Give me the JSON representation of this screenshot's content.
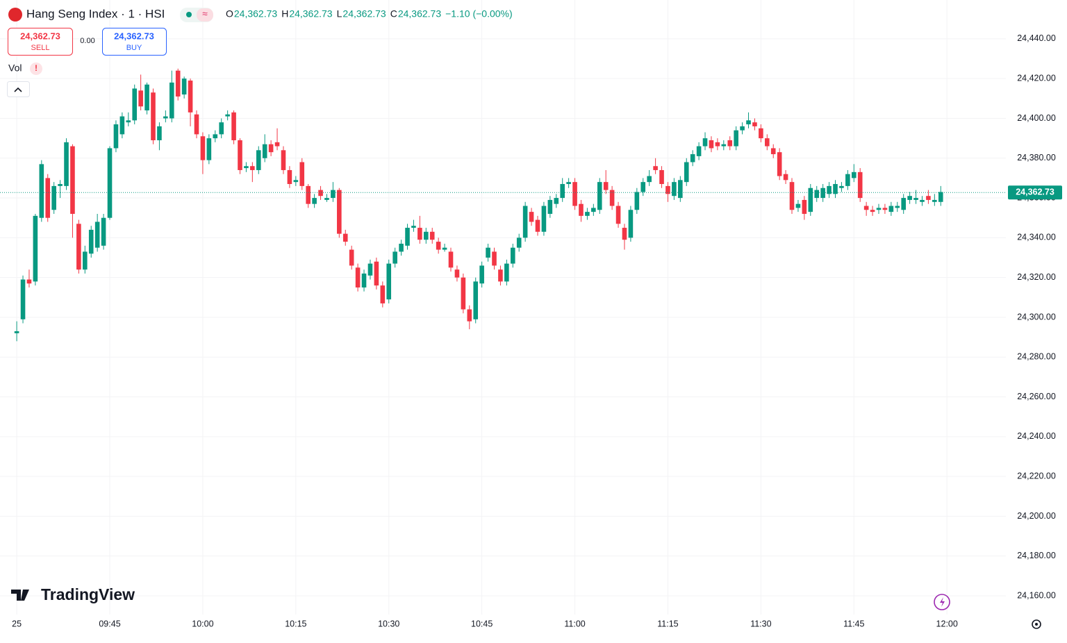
{
  "header": {
    "title": "Hang Seng Index · 1 · HSI",
    "legend": [
      {
        "key": "O",
        "value": "24,362.73"
      },
      {
        "key": "H",
        "value": "24,362.73"
      },
      {
        "key": "L",
        "value": "24,362.73"
      },
      {
        "key": "C",
        "value": "24,362.73"
      }
    ],
    "change": "−1.10 (−0.00%)",
    "toggle_icon": "≈"
  },
  "trade": {
    "sell_price": "24,362.73",
    "sell": "SELL",
    "spread": "0.00",
    "buy_price": "24,362.73",
    "buy": "BUY"
  },
  "indicator": {
    "name": "Vol",
    "warning": "!"
  },
  "logo": "TradingView",
  "chart_data": {
    "type": "candlestick",
    "up_color": "#089981",
    "down_color": "#f23645",
    "grid": true,
    "last_price": {
      "value": 24362.73,
      "label": "24,362.73"
    },
    "xlim": [
      -2.7,
      159.5
    ],
    "ylim": [
      24150.6,
      24459.5
    ],
    "xticks": [
      {
        "value": 0,
        "label": "25"
      },
      {
        "value": 15,
        "label": "09:45"
      },
      {
        "value": 30,
        "label": "10:00"
      },
      {
        "value": 45,
        "label": "10:15"
      },
      {
        "value": 60,
        "label": "10:30"
      },
      {
        "value": 75,
        "label": "10:45"
      },
      {
        "value": 90,
        "label": "11:00"
      },
      {
        "value": 105,
        "label": "11:15"
      },
      {
        "value": 120,
        "label": "11:30"
      },
      {
        "value": 135,
        "label": "11:45"
      },
      {
        "value": 150,
        "label": "12:00"
      }
    ],
    "yticks": [
      {
        "value": 24160,
        "label": "24,160.00"
      },
      {
        "value": 24180,
        "label": "24,180.00"
      },
      {
        "value": 24200,
        "label": "24,200.00"
      },
      {
        "value": 24220,
        "label": "24,220.00"
      },
      {
        "value": 24240,
        "label": "24,240.00"
      },
      {
        "value": 24260,
        "label": "24,260.00"
      },
      {
        "value": 24280,
        "label": "24,280.00"
      },
      {
        "value": 24300,
        "label": "24,300.00"
      },
      {
        "value": 24320,
        "label": "24,320.00"
      },
      {
        "value": 24340,
        "label": "24,340.00"
      },
      {
        "value": 24360,
        "label": "24,360.00"
      },
      {
        "value": 24380,
        "label": "24,380.00"
      },
      {
        "value": 24400,
        "label": "24,400.00"
      },
      {
        "value": 24420,
        "label": "24,420.00"
      },
      {
        "value": 24440,
        "label": "24,440.00"
      }
    ],
    "open": [
      24292,
      24299,
      24319,
      24318,
      24350,
      24370,
      24354,
      24366,
      24366,
      24386,
      24347,
      24324,
      24332,
      24335,
      24336,
      24350,
      24385,
      24392,
      24398,
      24399,
      24414,
      24404,
      24413,
      24389,
      24400,
      24400,
      24424,
      24412,
      24419,
      24402,
      24391,
      24379,
      24390,
      24392,
      24401,
      24403,
      24389,
      24375,
      24376,
      24374,
      24380,
      24387,
      24388,
      24384,
      24374,
      24368,
      24378,
      24366,
      24357,
      24364,
      24359,
      24360,
      24364,
      24342,
      24334,
      24325,
      24315,
      24321,
      24328,
      24316,
      24309,
      24327,
      24333,
      24336,
      24345,
      24345,
      24339,
      24343,
      24338,
      24334,
      24333,
      24324,
      24320,
      24304,
      24299,
      24317,
      24330,
      24333,
      24324,
      24318,
      24327,
      24335,
      24340,
      24353,
      24349,
      24343,
      24352,
      24357,
      24360,
      24367,
      24368,
      24357,
      24351,
      24353,
      24354,
      24368,
      24364,
      24356,
      24345,
      24340,
      24354,
      24363,
      24368,
      24376,
      24374,
      24366,
      24361,
      24360,
      24368,
      24378,
      24381,
      24386,
      24389,
      24388,
      24386,
      24389,
      24386,
      24394,
      24397,
      24398,
      24395,
      24390,
      24385,
      24383,
      24372,
      24368,
      24355,
      24359,
      24353,
      24360,
      24360,
      24362,
      24362,
      24365,
      24366,
      24370,
      24373,
      24356,
      24354,
      24354,
      24355,
      24353,
      24355,
      24354,
      24359,
      24359,
      24358,
      24361,
      24358,
      24358
    ],
    "high": [
      24298,
      24321,
      24324,
      24352,
      24379,
      24372,
      24368,
      24369,
      24390,
      24387,
      24349,
      24336,
      24346,
      24352,
      24352,
      24386,
      24399,
      24403,
      24403,
      24417,
      24422,
      24418,
      24415,
      24398,
      24404,
      24424,
      24425,
      24421,
      24420,
      24404,
      24393,
      24392,
      24394,
      24400,
      24404,
      24404,
      24390,
      24378,
      24378,
      24386,
      24392,
      24389,
      24395,
      24386,
      24376,
      24371,
      24380,
      24367,
      24362,
      24366,
      24362,
      24368,
      24365,
      24344,
      24336,
      24327,
      24324,
      24329,
      24330,
      24318,
      24329,
      24335,
      24339,
      24347,
      24349,
      24351,
      24345,
      24345,
      24340,
      24337,
      24335,
      24326,
      24322,
      24306,
      24320,
      24328,
      24337,
      24335,
      24326,
      24329,
      24337,
      24342,
      24358,
      24355,
      24351,
      24358,
      24361,
      24362,
      24370,
      24370,
      24370,
      24359,
      24355,
      24357,
      24370,
      24374,
      24366,
      24358,
      24347,
      24356,
      24365,
      24370,
      24374,
      24380,
      24376,
      24368,
      24370,
      24371,
      24380,
      24384,
      24388,
      24393,
      24391,
      24390,
      24389,
      24391,
      24396,
      24398,
      24403,
      24400,
      24397,
      24392,
      24387,
      24385,
      24374,
      24370,
      24359,
      24361,
      24367,
      24366,
      24367,
      24368,
      24369,
      24368,
      24374,
      24377,
      24375,
      24358,
      24356,
      24357,
      24357,
      24358,
      24358,
      24362,
      24363,
      24364,
      24361,
      24364,
      24362,
      24366
    ],
    "low": [
      24288,
      24297,
      24315,
      24316,
      24348,
      24348,
      24352,
      24360,
      24364,
      24340,
      24322,
      24322,
      24330,
      24333,
      24334,
      24349,
      24383,
      24390,
      24396,
      24397,
      24404,
      24402,
      24387,
      24384,
      24398,
      24398,
      24409,
      24410,
      24396,
      24390,
      24372,
      24377,
      24388,
      24390,
      24399,
      24387,
      24372,
      24373,
      24368,
      24372,
      24378,
      24381,
      24384,
      24372,
      24365,
      24366,
      24364,
      24355,
      24355,
      24359,
      24358,
      24358,
      24340,
      24336,
      24324,
      24313,
      24313,
      24319,
      24314,
      24305,
      24307,
      24325,
      24331,
      24334,
      24343,
      24337,
      24337,
      24337,
      24332,
      24333,
      24323,
      24318,
      24302,
      24294,
      24297,
      24315,
      24328,
      24324,
      24316,
      24316,
      24325,
      24333,
      24338,
      24346,
      24341,
      24341,
      24350,
      24355,
      24358,
      24365,
      24354,
      24348,
      24349,
      24351,
      24352,
      24362,
      24354,
      24345,
      24334,
      24338,
      24352,
      24361,
      24366,
      24372,
      24365,
      24358,
      24359,
      24358,
      24366,
      24376,
      24379,
      24384,
      24383,
      24384,
      24384,
      24384,
      24384,
      24392,
      24395,
      24394,
      24388,
      24384,
      24380,
      24369,
      24367,
      24352,
      24353,
      24349,
      24351,
      24358,
      24358,
      24360,
      24360,
      24363,
      24364,
      24368,
      24358,
      24351,
      24351,
      24352,
      24352,
      24351,
      24353,
      24352,
      24357,
      24357,
      24356,
      24357,
      24356,
      24356
    ],
    "close": [
      24293,
      24319,
      24317,
      24351,
      24377,
      24350,
      24366,
      24367,
      24388,
      24352,
      24324,
      24333,
      24344,
      24348,
      24350,
      24385,
      24397,
      24401,
      24399,
      24415,
      24406,
      24417,
      24389,
      24396,
      24401,
      24418,
      24411,
      24420,
      24403,
      24392,
      24379,
      24390,
      24392,
      24398,
      24402,
      24389,
      24374,
      24376,
      24374,
      24384,
      24387,
      24383,
      24386,
      24374,
      24367,
      24369,
      24366,
      24357,
      24360,
      24361,
      24360,
      24364,
      24342,
      24338,
      24326,
      24315,
      24322,
      24327,
      24316,
      24307,
      24327,
      24333,
      24337,
      24345,
      24346,
      24339,
      24343,
      24339,
      24334,
      24335,
      24325,
      24320,
      24304,
      24298,
      24318,
      24326,
      24335,
      24326,
      24318,
      24327,
      24335,
      24340,
      24356,
      24348,
      24343,
      24356,
      24359,
      24360,
      24367,
      24368,
      24356,
      24351,
      24353,
      24355,
      24368,
      24364,
      24356,
      24347,
      24339,
      24354,
      24363,
      24368,
      24371,
      24374,
      24367,
      24362,
      24368,
      24369,
      24378,
      24382,
      24386,
      24390,
      24385,
      24386,
      24387,
      24386,
      24394,
      24396,
      24399,
      24396,
      24390,
      24386,
      24382,
      24371,
      24369,
      24354,
      24357,
      24352,
      24365,
      24364,
      24365,
      24366,
      24367,
      24366,
      24372,
      24373,
      24360,
      24354,
      24353,
      24355,
      24354,
      24356,
      24356,
      24360,
      24361,
      24360,
      24359,
      24359,
      24359,
      24363
    ]
  }
}
